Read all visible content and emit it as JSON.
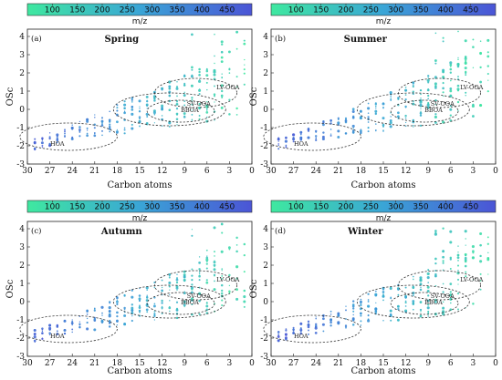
{
  "chart_data": [
    {
      "type": "scatter",
      "panel_label": "(a)",
      "title": "Spring",
      "xlabel": "Carbon atoms",
      "ylabel": "OSc",
      "xlim": [
        30,
        0
      ],
      "ylim": [
        -3,
        4.4
      ],
      "x_ticks": [
        30,
        27,
        24,
        21,
        18,
        15,
        12,
        9,
        6,
        3,
        0
      ],
      "y_ticks": [
        -3,
        -2,
        -1,
        0,
        1,
        2,
        3,
        4
      ],
      "colorbar": {
        "label": "m/z",
        "ticks": [
          100,
          150,
          200,
          250,
          300,
          350,
          400,
          450
        ],
        "range": [
          50,
          500
        ],
        "colors": [
          "#3fe8a0",
          "#3aa5d6",
          "#4b55d6"
        ]
      },
      "regions": [
        {
          "label": "HOA",
          "center": [
            24.5,
            -1.5
          ],
          "radii": [
            6.5,
            0.75
          ]
        },
        {
          "label": "SV-OOA",
          "center": [
            11,
            0.0
          ],
          "radii": [
            7.5,
            0.9
          ]
        },
        {
          "label": "LV-OOA",
          "center": [
            7.5,
            0.9
          ],
          "radii": [
            5.5,
            0.8
          ]
        },
        {
          "label": "BBOA",
          "center": [
            9.5,
            -0.1
          ],
          "radii": [
            4.5,
            0.6
          ]
        }
      ]
    },
    {
      "type": "scatter",
      "panel_label": "(b)",
      "title": "Summer",
      "xlabel": "Carbon atoms",
      "ylabel": "OSc",
      "xlim": [
        30,
        0
      ],
      "ylim": [
        -3,
        4.4
      ],
      "x_ticks": [
        30,
        27,
        24,
        21,
        18,
        15,
        12,
        9,
        6,
        3,
        0
      ],
      "y_ticks": [
        -3,
        -2,
        -1,
        0,
        1,
        2,
        3,
        4
      ],
      "colorbar": {
        "label": "m/z",
        "ticks": [
          100,
          150,
          200,
          250,
          300,
          350,
          400,
          450
        ],
        "range": [
          50,
          500
        ],
        "colors": [
          "#3fe8a0",
          "#3aa5d6",
          "#4b55d6"
        ]
      },
      "regions": [
        {
          "label": "HOA",
          "center": [
            24.5,
            -1.5
          ],
          "radii": [
            6.5,
            0.75
          ]
        },
        {
          "label": "SV-OOA",
          "center": [
            11,
            0.0
          ],
          "radii": [
            7.5,
            0.9
          ]
        },
        {
          "label": "LV-OOA",
          "center": [
            7.5,
            0.9
          ],
          "radii": [
            5.5,
            0.8
          ]
        },
        {
          "label": "BBOA",
          "center": [
            9.5,
            -0.1
          ],
          "radii": [
            4.5,
            0.6
          ]
        }
      ]
    },
    {
      "type": "scatter",
      "panel_label": "(c)",
      "title": "Autumn",
      "xlabel": "Carbon atoms",
      "ylabel": "OSc",
      "xlim": [
        30,
        0
      ],
      "ylim": [
        -3,
        4.4
      ],
      "x_ticks": [
        30,
        27,
        24,
        21,
        18,
        15,
        12,
        9,
        6,
        3,
        0
      ],
      "y_ticks": [
        -3,
        -2,
        -1,
        0,
        1,
        2,
        3,
        4
      ],
      "colorbar": {
        "label": "m/z",
        "ticks": [
          100,
          150,
          200,
          250,
          300,
          350,
          400,
          450
        ],
        "range": [
          50,
          500
        ],
        "colors": [
          "#3fe8a0",
          "#3aa5d6",
          "#4b55d6"
        ]
      },
      "regions": [
        {
          "label": "HOA",
          "center": [
            24.5,
            -1.5
          ],
          "radii": [
            6.5,
            0.75
          ]
        },
        {
          "label": "SV-OOA",
          "center": [
            11,
            0.0
          ],
          "radii": [
            7.5,
            0.9
          ]
        },
        {
          "label": "LV-OOA",
          "center": [
            7.5,
            0.9
          ],
          "radii": [
            5.5,
            0.8
          ]
        },
        {
          "label": "BBOA",
          "center": [
            9.5,
            -0.1
          ],
          "radii": [
            4.5,
            0.6
          ]
        }
      ]
    },
    {
      "type": "scatter",
      "panel_label": "(d)",
      "title": "Winter",
      "xlabel": "Carbon atoms",
      "ylabel": "OSc",
      "xlim": [
        30,
        0
      ],
      "ylim": [
        -3,
        4.4
      ],
      "x_ticks": [
        30,
        27,
        24,
        21,
        18,
        15,
        12,
        9,
        6,
        3,
        0
      ],
      "y_ticks": [
        -3,
        -2,
        -1,
        0,
        1,
        2,
        3,
        4
      ],
      "colorbar": {
        "label": "m/z",
        "ticks": [
          100,
          150,
          200,
          250,
          300,
          350,
          400,
          450
        ],
        "range": [
          50,
          500
        ],
        "colors": [
          "#3fe8a0",
          "#3aa5d6",
          "#4b55d6"
        ]
      },
      "regions": [
        {
          "label": "HOA",
          "center": [
            24.5,
            -1.5
          ],
          "radii": [
            6.5,
            0.75
          ]
        },
        {
          "label": "SV-OOA",
          "center": [
            11,
            0.0
          ],
          "radii": [
            7.5,
            0.9
          ]
        },
        {
          "label": "LV-OOA",
          "center": [
            7.5,
            0.9
          ],
          "radii": [
            5.5,
            0.8
          ]
        },
        {
          "label": "BBOA",
          "center": [
            9.5,
            -0.1
          ],
          "radii": [
            4.5,
            0.6
          ]
        }
      ]
    }
  ]
}
